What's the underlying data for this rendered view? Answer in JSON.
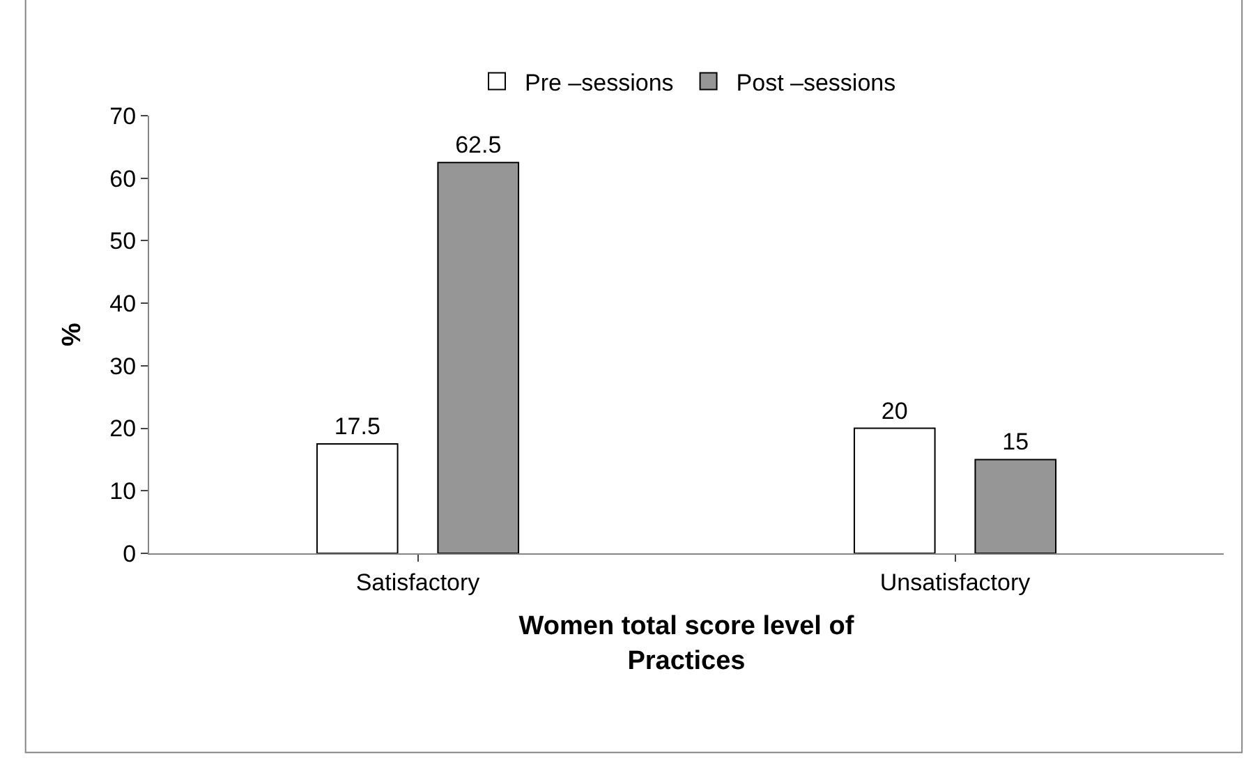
{
  "chart_data": {
    "type": "bar",
    "xlabel": "Women total score level of\nPractices",
    "ylabel": "%",
    "categories": [
      "Satisfactory",
      "Unsatisfactory"
    ],
    "series": [
      {
        "name": "Pre –sessions",
        "color": "#ffffff",
        "values": [
          17.5,
          20
        ]
      },
      {
        "name": "Post –sessions",
        "color": "#969696",
        "values": [
          62.5,
          15
        ]
      }
    ],
    "ylim": [
      0,
      70
    ],
    "yticks": [
      0,
      10,
      20,
      30,
      40,
      50,
      60,
      70
    ],
    "legend": "top",
    "data_labels": true
  }
}
